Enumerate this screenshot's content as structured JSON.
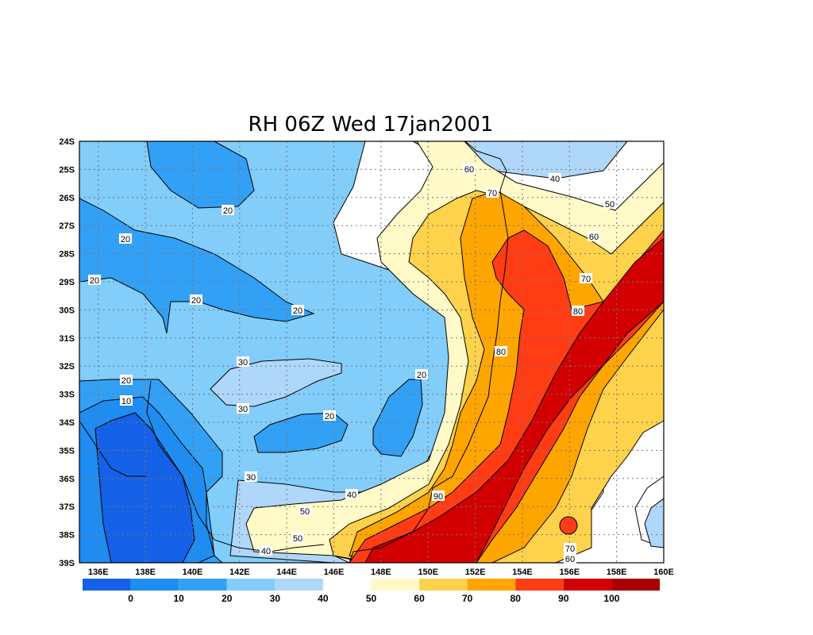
{
  "chart_data": {
    "type": "heatmap",
    "title": "RH 06Z Wed 17jan2001",
    "x_ticks": [
      "136E",
      "138E",
      "140E",
      "142E",
      "144E",
      "146E",
      "148E",
      "150E",
      "152E",
      "154E",
      "156E",
      "158E",
      "160E"
    ],
    "y_ticks": [
      "24S",
      "25S",
      "26S",
      "27S",
      "28S",
      "29S",
      "30S",
      "31S",
      "32S",
      "33S",
      "34S",
      "35S",
      "36S",
      "37S",
      "38S",
      "39S"
    ],
    "xlim": [
      135.2,
      160
    ],
    "ylim": [
      -39,
      -24
    ],
    "grid": true,
    "colorbar": {
      "levels": [
        "0",
        "10",
        "20",
        "30",
        "40",
        "50",
        "60",
        "70",
        "80",
        "90",
        "100"
      ],
      "colors": [
        "#1460e6",
        "#1e8cf0",
        "#32a0f5",
        "#82cdfa",
        "#afd7fa",
        "#ffffff",
        "#fffac8",
        "#ffd24b",
        "#ffa500",
        "#ff3c14",
        "#d20000",
        "#aa0000"
      ]
    },
    "contour_labels": [
      "60",
      "40",
      "70",
      "50",
      "20",
      "60",
      "20",
      "70",
      "20",
      "20",
      "80",
      "20",
      "80",
      "30",
      "20",
      "20",
      "10",
      "30",
      "20",
      "30",
      "90",
      "40",
      "50",
      "50",
      "40",
      "70",
      "60"
    ]
  }
}
